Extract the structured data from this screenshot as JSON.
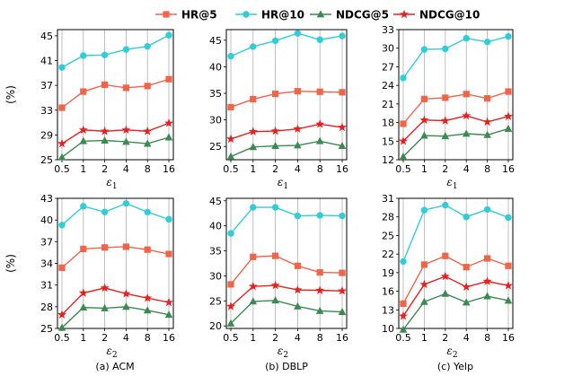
{
  "legend": {
    "placement": "top-center",
    "entries": [
      "HR@5",
      "HR@10",
      "NDCG@5",
      "NDCG@10"
    ]
  },
  "series_styles": [
    {
      "name": "HR@5",
      "color": "#f06448",
      "marker": "square"
    },
    {
      "name": "HR@10",
      "color": "#2fcdd9",
      "marker": "circle"
    },
    {
      "name": "NDCG@5",
      "color": "#3a8a52",
      "marker": "triangle"
    },
    {
      "name": "NDCG@10",
      "color": "#e8201e",
      "marker": "star"
    }
  ],
  "captions": [
    "(a) ACM",
    "(b) DBLP",
    "(c) Yelp"
  ],
  "chart_data": [
    {
      "type": "line",
      "x": [
        "0.5",
        "1",
        "2",
        "4",
        "8",
        "16"
      ],
      "xlabel": "ε",
      "xlabel_sub": "1",
      "ylabel": "(%)",
      "ylim": [
        25,
        46
      ],
      "yticks": [
        25,
        29,
        33,
        37,
        41,
        45
      ],
      "grid": "vertical",
      "series": [
        {
          "name": "HR@5",
          "values": [
            33.4,
            36.0,
            37.1,
            36.6,
            36.9,
            38.0
          ]
        },
        {
          "name": "HR@10",
          "values": [
            39.9,
            41.8,
            41.9,
            42.8,
            43.3,
            45.1
          ]
        },
        {
          "name": "NDCG@5",
          "values": [
            25.4,
            28.0,
            28.1,
            27.9,
            27.6,
            28.6
          ]
        },
        {
          "name": "NDCG@10",
          "values": [
            27.6,
            29.8,
            29.6,
            29.8,
            29.6,
            30.9
          ]
        }
      ]
    },
    {
      "type": "line",
      "x": [
        "0.5",
        "1",
        "2",
        "4",
        "8",
        "16"
      ],
      "xlabel": "ε",
      "xlabel_sub": "1",
      "ylabel": "",
      "ylim": [
        22.5,
        47
      ],
      "yticks": [
        25,
        30,
        35,
        40,
        45
      ],
      "grid": "vertical",
      "series": [
        {
          "name": "HR@5",
          "values": [
            32.4,
            33.9,
            34.9,
            35.4,
            35.3,
            35.2
          ]
        },
        {
          "name": "HR@10",
          "values": [
            42.0,
            43.8,
            44.9,
            46.3,
            45.1,
            45.8
          ]
        },
        {
          "name": "NDCG@5",
          "values": [
            23.1,
            24.9,
            25.1,
            25.2,
            26.0,
            25.1
          ]
        },
        {
          "name": "NDCG@10",
          "values": [
            26.4,
            27.8,
            27.9,
            28.3,
            29.2,
            28.6
          ]
        }
      ]
    },
    {
      "type": "line",
      "x": [
        "0.5",
        "1",
        "2",
        "4",
        "8",
        "16"
      ],
      "xlabel": "ε",
      "xlabel_sub": "1",
      "ylabel": "",
      "ylim": [
        12,
        33
      ],
      "yticks": [
        12,
        15,
        18,
        21,
        24,
        27,
        30,
        33
      ],
      "grid": "vertical",
      "series": [
        {
          "name": "HR@5",
          "values": [
            17.8,
            21.8,
            22.0,
            22.6,
            21.9,
            23.0
          ]
        },
        {
          "name": "HR@10",
          "values": [
            25.2,
            29.8,
            29.9,
            31.6,
            31.0,
            31.9
          ]
        },
        {
          "name": "NDCG@5",
          "values": [
            12.5,
            15.9,
            15.8,
            16.2,
            16.0,
            17.0
          ]
        },
        {
          "name": "NDCG@10",
          "values": [
            15.0,
            18.4,
            18.3,
            19.1,
            18.1,
            19.0
          ]
        }
      ]
    },
    {
      "type": "line",
      "x": [
        "0.5",
        "1",
        "2",
        "4",
        "8",
        "16"
      ],
      "xlabel": "ε",
      "xlabel_sub": "2",
      "ylabel": "(%)",
      "ylim": [
        25,
        43
      ],
      "yticks": [
        25,
        28,
        31,
        34,
        37,
        40,
        43
      ],
      "grid": "vertical",
      "series": [
        {
          "name": "HR@5",
          "values": [
            33.4,
            36.0,
            36.2,
            36.3,
            35.9,
            35.3
          ]
        },
        {
          "name": "HR@10",
          "values": [
            39.3,
            41.9,
            41.1,
            42.3,
            41.1,
            40.1
          ]
        },
        {
          "name": "NDCG@5",
          "values": [
            25.1,
            27.9,
            27.8,
            28.0,
            27.5,
            26.9
          ]
        },
        {
          "name": "NDCG@10",
          "values": [
            26.9,
            29.9,
            30.6,
            29.8,
            29.2,
            28.6
          ]
        }
      ]
    },
    {
      "type": "line",
      "x": [
        "0.5",
        "1",
        "2",
        "4",
        "8",
        "16"
      ],
      "xlabel": "ε",
      "xlabel_sub": "2",
      "ylabel": "",
      "ylim": [
        19.5,
        45.5
      ],
      "yticks": [
        20,
        25,
        30,
        35,
        40,
        45
      ],
      "grid": "vertical",
      "series": [
        {
          "name": "HR@5",
          "values": [
            28.3,
            33.8,
            34.0,
            32.0,
            30.7,
            30.6
          ]
        },
        {
          "name": "HR@10",
          "values": [
            38.5,
            43.7,
            43.7,
            42.0,
            42.1,
            42.0
          ]
        },
        {
          "name": "NDCG@5",
          "values": [
            20.5,
            24.9,
            25.1,
            23.9,
            23.0,
            22.8
          ]
        },
        {
          "name": "NDCG@10",
          "values": [
            23.9,
            27.9,
            28.1,
            27.2,
            27.1,
            27.0
          ]
        }
      ]
    },
    {
      "type": "line",
      "x": [
        "0.5",
        "1",
        "2",
        "4",
        "8",
        "16"
      ],
      "xlabel": "ε",
      "xlabel_sub": "2",
      "ylabel": "",
      "ylim": [
        10,
        31
      ],
      "yticks": [
        10,
        13,
        16,
        19,
        22,
        25,
        28,
        31
      ],
      "grid": "vertical",
      "series": [
        {
          "name": "HR@5",
          "values": [
            14.0,
            20.3,
            21.7,
            19.9,
            21.3,
            20.1
          ]
        },
        {
          "name": "HR@10",
          "values": [
            20.8,
            29.1,
            29.9,
            28.0,
            29.2,
            27.9
          ]
        },
        {
          "name": "NDCG@5",
          "values": [
            9.8,
            14.3,
            15.6,
            14.2,
            15.2,
            14.5
          ]
        },
        {
          "name": "NDCG@10",
          "values": [
            12.0,
            17.1,
            18.4,
            16.7,
            17.6,
            16.9
          ]
        }
      ]
    }
  ]
}
